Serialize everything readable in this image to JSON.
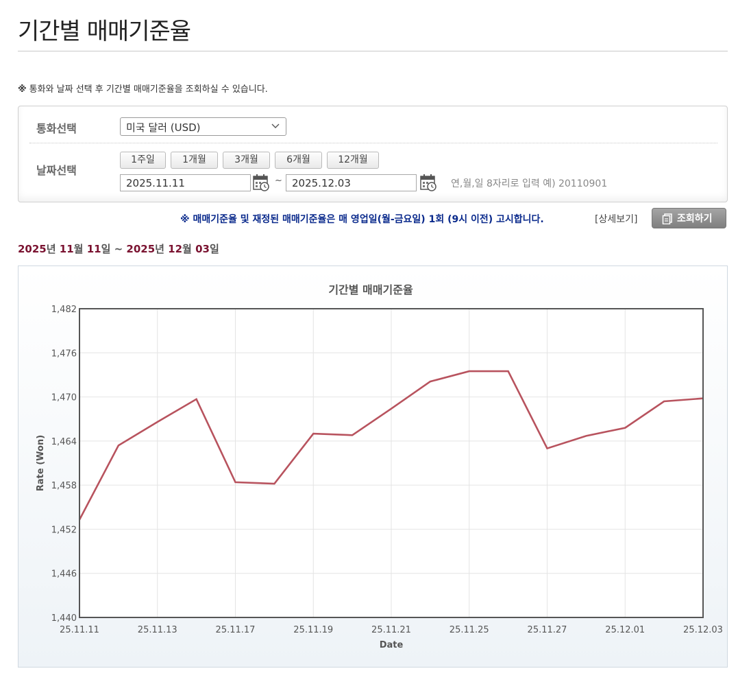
{
  "page": {
    "title": "기간별 매매기준율",
    "notice_mark": "※",
    "notice_text": "통화와 날짜 선택 후 기간별 매매기준율을 조회하실 수 있습니다."
  },
  "search": {
    "currency_label": "통화선택",
    "currency_value": "미국 달러 (USD)",
    "date_label": "날짜선택",
    "period_buttons": [
      "1주일",
      "1개월",
      "3개월",
      "6개월",
      "12개월"
    ],
    "start_date": "2025.11.11",
    "tilde": "~",
    "end_date": "2025.12.03",
    "date_hint": "연,월,일 8자리로 입력 예) 20110901"
  },
  "actions": {
    "rate_notice": "※ 매매기준율 및 재정된 매매기준율은 매 영업일(월-금요일) 1회 (9시 이전) 고시합니다.",
    "detail_link": "[상세보기]",
    "search_button": "조회하기"
  },
  "range": {
    "y1": "2025",
    "u1": "년 ",
    "m1": "11",
    "u2": "월 ",
    "d1": "11",
    "u3": "일 ~ ",
    "y2": "2025",
    "u4": "년 ",
    "m2": "12",
    "u5": "월 ",
    "d2": "03",
    "u6": "일"
  },
  "colors": {
    "line": "#b8535e",
    "accent_text": "#7a1230",
    "notice_blue": "#0a2a8c"
  },
  "chart_data": {
    "type": "line",
    "title": "기간별 매매기준율",
    "xlabel": "Date",
    "ylabel": "Rate (Won)",
    "ylim": [
      1440,
      1482
    ],
    "yticks": [
      "1,482",
      "1,476",
      "1,470",
      "1,464",
      "1,458",
      "1,452",
      "1,446",
      "1,440"
    ],
    "ytick_values": [
      1482,
      1476,
      1470,
      1464,
      1458,
      1452,
      1446,
      1440
    ],
    "xtick_labels": [
      "25.11.11",
      "25.11.13",
      "25.11.17",
      "25.11.19",
      "25.11.21",
      "25.11.25",
      "25.11.27",
      "25.12.01",
      "25.12.03"
    ],
    "x": [
      "25.11.11",
      "25.11.12",
      "25.11.13",
      "25.11.14",
      "25.11.17",
      "25.11.18",
      "25.11.19",
      "25.11.20",
      "25.11.21",
      "25.11.24",
      "25.11.25",
      "25.11.26",
      "25.11.27",
      "25.11.28",
      "25.12.01",
      "25.12.02",
      "25.12.03"
    ],
    "series": [
      {
        "values": [
          1453.3,
          1463.4,
          1466.6,
          1469.7,
          1458.4,
          1458.2,
          1465.0,
          1464.8,
          1468.4,
          1472.1,
          1473.5,
          1473.5,
          1463.0,
          1464.7,
          1465.8,
          1469.4,
          1469.8
        ]
      }
    ],
    "grid": true,
    "legend": "none"
  }
}
